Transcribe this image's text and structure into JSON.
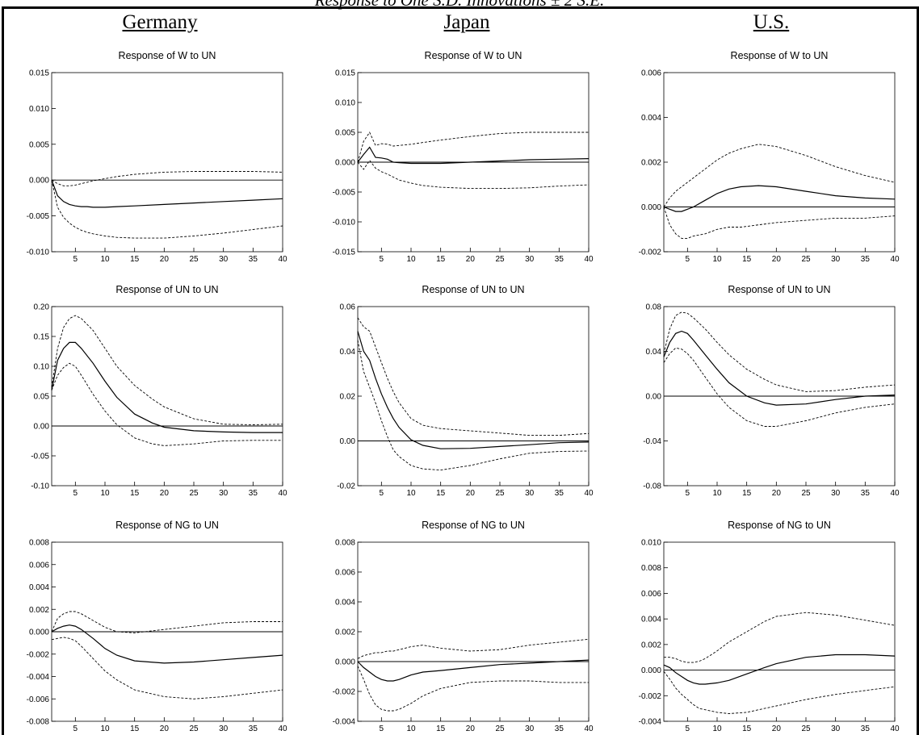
{
  "figure": {
    "title": "Response to One S.D. Innovations ± 2 S.E.",
    "columns": [
      "Germany",
      "Japan",
      "U.S."
    ]
  },
  "chart_data": [
    {
      "type": "line",
      "country": "Germany",
      "title": "Response of W to UN",
      "ylim": [
        -0.01,
        0.015
      ],
      "yticks": [
        "-0.010",
        "-0.005",
        "0.000",
        "0.005",
        "0.010",
        "0.015"
      ],
      "xlim": [
        1,
        40
      ],
      "xticks": [
        5,
        10,
        15,
        20,
        25,
        30,
        35,
        40
      ],
      "x": [
        1,
        2,
        3,
        4,
        5,
        6,
        7,
        8,
        10,
        12,
        15,
        20,
        25,
        30,
        35,
        40
      ],
      "series": [
        {
          "values": [
            0,
            -0.0022,
            -0.003,
            -0.0034,
            -0.0036,
            -0.0037,
            -0.0037,
            -0.0038,
            -0.0038,
            -0.0037,
            -0.0036,
            -0.0034,
            -0.0032,
            -0.003,
            -0.0028,
            -0.0026
          ],
          "style": "solid"
        },
        {
          "values": [
            0,
            -0.0005,
            -0.0008,
            -0.0008,
            -0.0007,
            -0.0005,
            -0.0003,
            -0.0001,
            0.0002,
            0.0005,
            0.0008,
            0.0011,
            0.0012,
            0.0012,
            0.0012,
            0.0011
          ],
          "style": "dashed"
        },
        {
          "values": [
            0,
            -0.0038,
            -0.0052,
            -0.006,
            -0.0066,
            -0.007,
            -0.0073,
            -0.0075,
            -0.0078,
            -0.008,
            -0.0081,
            -0.0081,
            -0.0078,
            -0.0074,
            -0.0069,
            -0.0064
          ],
          "style": "dashed"
        }
      ]
    },
    {
      "type": "line",
      "country": "Japan",
      "title": "Response of W to UN",
      "ylim": [
        -0.015,
        0.015
      ],
      "yticks": [
        "-0.015",
        "-0.010",
        "-0.005",
        "0.000",
        "0.005",
        "0.010",
        "0.015"
      ],
      "xlim": [
        1,
        40
      ],
      "xticks": [
        5,
        10,
        15,
        20,
        25,
        30,
        35,
        40
      ],
      "x": [
        1,
        2,
        3,
        4,
        5,
        6,
        7,
        8,
        10,
        12,
        15,
        20,
        25,
        30,
        35,
        40
      ],
      "series": [
        {
          "values": [
            0,
            0.0013,
            0.0025,
            0.0008,
            0.0007,
            0.0005,
            0.0,
            -0.0001,
            -0.0002,
            -0.0002,
            -0.0002,
            0.0,
            0.0002,
            0.0004,
            0.0005,
            0.0006
          ],
          "style": "solid"
        },
        {
          "values": [
            0,
            0.0035,
            0.005,
            0.0028,
            0.0031,
            0.003,
            0.0027,
            0.0028,
            0.003,
            0.0033,
            0.0037,
            0.0043,
            0.0048,
            0.005,
            0.005,
            0.005
          ],
          "style": "dashed"
        },
        {
          "values": [
            0,
            -0.0012,
            0.0003,
            -0.001,
            -0.0016,
            -0.002,
            -0.0025,
            -0.003,
            -0.0035,
            -0.0039,
            -0.0042,
            -0.0044,
            -0.0044,
            -0.0043,
            -0.004,
            -0.0038
          ],
          "style": "dashed"
        }
      ]
    },
    {
      "type": "line",
      "country": "U.S.",
      "title": "Response of W to UN",
      "ylim": [
        -0.002,
        0.006
      ],
      "yticks": [
        "-0.002",
        "0.000",
        "0.002",
        "0.004",
        "0.006"
      ],
      "xlim": [
        1,
        40
      ],
      "xticks": [
        5,
        10,
        15,
        20,
        25,
        30,
        35,
        40
      ],
      "x": [
        1,
        2,
        3,
        4,
        5,
        6,
        8,
        10,
        12,
        14,
        17,
        20,
        25,
        30,
        35,
        40
      ],
      "series": [
        {
          "values": [
            0,
            -0.0001,
            -0.0002,
            -0.0002,
            -0.0001,
            0.0,
            0.0003,
            0.0006,
            0.0008,
            0.0009,
            0.00095,
            0.0009,
            0.0007,
            0.0005,
            0.0004,
            0.00035
          ],
          "style": "solid"
        },
        {
          "values": [
            0,
            0.0004,
            0.0007,
            0.0009,
            0.0011,
            0.0013,
            0.0017,
            0.0021,
            0.0024,
            0.0026,
            0.0028,
            0.0027,
            0.0023,
            0.0018,
            0.0014,
            0.0011
          ],
          "style": "dashed"
        },
        {
          "values": [
            0,
            -0.0008,
            -0.0012,
            -0.0014,
            -0.0014,
            -0.0013,
            -0.0012,
            -0.001,
            -0.0009,
            -0.0009,
            -0.0008,
            -0.0007,
            -0.0006,
            -0.0005,
            -0.0005,
            -0.0004
          ],
          "style": "dashed"
        }
      ]
    },
    {
      "type": "line",
      "country": "Germany",
      "title": "Response of UN to UN",
      "ylim": [
        -0.1,
        0.2
      ],
      "yticks": [
        "-0.10",
        "-0.05",
        "0.00",
        "0.05",
        "0.10",
        "0.15",
        "0.20"
      ],
      "xlim": [
        1,
        40
      ],
      "xticks": [
        5,
        10,
        15,
        20,
        25,
        30,
        35,
        40
      ],
      "x": [
        1,
        2,
        3,
        4,
        5,
        6,
        8,
        10,
        12,
        15,
        18,
        20,
        25,
        30,
        35,
        40
      ],
      "series": [
        {
          "values": [
            0.06,
            0.11,
            0.13,
            0.14,
            0.14,
            0.13,
            0.105,
            0.075,
            0.048,
            0.02,
            0.005,
            -0.002,
            -0.008,
            -0.01,
            -0.011,
            -0.011
          ],
          "style": "solid"
        },
        {
          "values": [
            0.065,
            0.13,
            0.165,
            0.18,
            0.185,
            0.18,
            0.16,
            0.13,
            0.1,
            0.068,
            0.045,
            0.032,
            0.012,
            0.003,
            0.002,
            0.003
          ],
          "style": "dashed"
        },
        {
          "values": [
            0.06,
            0.085,
            0.098,
            0.105,
            0.1,
            0.085,
            0.053,
            0.025,
            0.002,
            -0.02,
            -0.03,
            -0.033,
            -0.03,
            -0.025,
            -0.024,
            -0.024
          ],
          "style": "dashed"
        }
      ]
    },
    {
      "type": "line",
      "country": "Japan",
      "title": "Response of UN to UN",
      "ylim": [
        -0.02,
        0.06
      ],
      "yticks": [
        "-0.02",
        "0.00",
        "0.02",
        "0.04",
        "0.06"
      ],
      "xlim": [
        1,
        40
      ],
      "xticks": [
        5,
        10,
        15,
        20,
        25,
        30,
        35,
        40
      ],
      "x": [
        1,
        2,
        3,
        4,
        5,
        6,
        7,
        8,
        10,
        12,
        15,
        20,
        25,
        30,
        35,
        40
      ],
      "series": [
        {
          "values": [
            0.049,
            0.04,
            0.036,
            0.028,
            0.021,
            0.015,
            0.01,
            0.006,
            0.0005,
            -0.002,
            -0.0035,
            -0.0033,
            -0.0025,
            -0.0017,
            -0.0008,
            -0.0005
          ],
          "style": "solid"
        },
        {
          "values": [
            0.055,
            0.051,
            0.049,
            0.042,
            0.035,
            0.028,
            0.022,
            0.017,
            0.01,
            0.007,
            0.0055,
            0.0045,
            0.0035,
            0.0025,
            0.0025,
            0.0033
          ],
          "style": "dashed"
        },
        {
          "values": [
            0.045,
            0.031,
            0.024,
            0.017,
            0.009,
            0.002,
            -0.004,
            -0.007,
            -0.011,
            -0.0125,
            -0.013,
            -0.011,
            -0.008,
            -0.0055,
            -0.0047,
            -0.0045
          ],
          "style": "dashed"
        }
      ]
    },
    {
      "type": "line",
      "country": "U.S.",
      "title": "Response of UN to UN",
      "ylim": [
        -0.08,
        0.08
      ],
      "yticks": [
        "-0.08",
        "-0.04",
        "0.00",
        "0.04",
        "0.08"
      ],
      "xlim": [
        1,
        40
      ],
      "xticks": [
        5,
        10,
        15,
        20,
        25,
        30,
        35,
        40
      ],
      "x": [
        1,
        2,
        3,
        4,
        5,
        6,
        8,
        10,
        12,
        15,
        18,
        20,
        25,
        30,
        35,
        40
      ],
      "series": [
        {
          "values": [
            0.035,
            0.048,
            0.056,
            0.058,
            0.056,
            0.05,
            0.037,
            0.024,
            0.012,
            0.0,
            -0.006,
            -0.008,
            -0.007,
            -0.003,
            0.0,
            0.001
          ],
          "style": "solid"
        },
        {
          "values": [
            0.038,
            0.06,
            0.072,
            0.075,
            0.074,
            0.07,
            0.06,
            0.048,
            0.037,
            0.024,
            0.015,
            0.01,
            0.004,
            0.005,
            0.008,
            0.01
          ],
          "style": "dashed"
        },
        {
          "values": [
            0.03,
            0.038,
            0.043,
            0.042,
            0.038,
            0.032,
            0.017,
            0.002,
            -0.01,
            -0.022,
            -0.027,
            -0.027,
            -0.022,
            -0.015,
            -0.01,
            -0.007
          ],
          "style": "dashed"
        }
      ]
    },
    {
      "type": "line",
      "country": "Germany",
      "title": "Response of NG to UN",
      "ylim": [
        -0.008,
        0.008
      ],
      "yticks": [
        "-0.008",
        "-0.006",
        "-0.004",
        "-0.002",
        "0.000",
        "0.002",
        "0.004",
        "0.006",
        "0.008"
      ],
      "xlim": [
        1,
        40
      ],
      "xticks": [
        5,
        10,
        15,
        20,
        25,
        30,
        35,
        40
      ],
      "x": [
        1,
        2,
        3,
        4,
        5,
        6,
        8,
        10,
        12,
        15,
        20,
        25,
        30,
        35,
        40
      ],
      "series": [
        {
          "values": [
            0,
            0.0003,
            0.0005,
            0.0006,
            0.0005,
            0.0002,
            -0.0006,
            -0.0015,
            -0.0021,
            -0.0026,
            -0.0028,
            -0.0027,
            -0.0025,
            -0.0023,
            -0.0021
          ],
          "style": "solid"
        },
        {
          "values": [
            0,
            0.0012,
            0.0016,
            0.0018,
            0.0018,
            0.0016,
            0.001,
            0.0004,
            0.0,
            -0.0001,
            0.0002,
            0.0005,
            0.0008,
            0.0009,
            0.0009
          ],
          "style": "dashed"
        },
        {
          "values": [
            -0.0007,
            -0.0006,
            -0.0005,
            -0.0006,
            -0.0008,
            -0.0013,
            -0.0024,
            -0.0035,
            -0.0043,
            -0.0052,
            -0.0058,
            -0.006,
            -0.0058,
            -0.0055,
            -0.0052
          ],
          "style": "dashed"
        }
      ]
    },
    {
      "type": "line",
      "country": "Japan",
      "title": "Response of NG to UN",
      "ylim": [
        -0.004,
        0.008
      ],
      "yticks": [
        "-0.004",
        "-0.002",
        "0.000",
        "0.002",
        "0.004",
        "0.006",
        "0.008"
      ],
      "xlim": [
        1,
        40
      ],
      "xticks": [
        5,
        10,
        15,
        20,
        25,
        30,
        35,
        40
      ],
      "x": [
        1,
        2,
        3,
        4,
        5,
        6,
        7,
        8,
        10,
        12,
        15,
        20,
        25,
        30,
        35,
        40
      ],
      "series": [
        {
          "values": [
            0,
            -0.0004,
            -0.0007,
            -0.001,
            -0.0012,
            -0.0013,
            -0.0013,
            -0.0012,
            -0.0009,
            -0.0007,
            -0.0006,
            -0.0004,
            -0.0002,
            -0.0001,
            0.0,
            0.0001
          ],
          "style": "solid"
        },
        {
          "values": [
            0.0002,
            0.0004,
            0.0005,
            0.0006,
            0.0006,
            0.0007,
            0.0007,
            0.0008,
            0.001,
            0.0011,
            0.0009,
            0.0007,
            0.0008,
            0.0011,
            0.0013,
            0.0015
          ],
          "style": "dashed"
        },
        {
          "values": [
            -0.0003,
            -0.0012,
            -0.0022,
            -0.0029,
            -0.0032,
            -0.0033,
            -0.0033,
            -0.0032,
            -0.0028,
            -0.0023,
            -0.0018,
            -0.0014,
            -0.0013,
            -0.0013,
            -0.0014,
            -0.0014
          ],
          "style": "dashed"
        }
      ]
    },
    {
      "type": "line",
      "country": "U.S.",
      "title": "Response of NG to UN",
      "ylim": [
        -0.004,
        0.01
      ],
      "yticks": [
        "-0.004",
        "-0.002",
        "0.000",
        "0.002",
        "0.004",
        "0.006",
        "0.008",
        "0.010"
      ],
      "xlim": [
        1,
        40
      ],
      "xticks": [
        5,
        10,
        15,
        20,
        25,
        30,
        35,
        40
      ],
      "x": [
        1,
        2,
        3,
        4,
        5,
        6,
        7,
        8,
        10,
        12,
        15,
        18,
        20,
        25,
        30,
        35,
        40
      ],
      "series": [
        {
          "values": [
            0.0004,
            0.0002,
            -0.0002,
            -0.0005,
            -0.0008,
            -0.001,
            -0.0011,
            -0.0011,
            -0.001,
            -0.0008,
            -0.0003,
            0.0002,
            0.0005,
            0.001,
            0.0012,
            0.0012,
            0.0011
          ],
          "style": "solid"
        },
        {
          "values": [
            0.001,
            0.001,
            0.0009,
            0.0007,
            0.0006,
            0.0006,
            0.0007,
            0.0009,
            0.0015,
            0.0022,
            0.003,
            0.0038,
            0.0042,
            0.0045,
            0.0043,
            0.0039,
            0.0035
          ],
          "style": "dashed"
        },
        {
          "values": [
            -0.0001,
            -0.0007,
            -0.0014,
            -0.0019,
            -0.0023,
            -0.0027,
            -0.003,
            -0.0031,
            -0.0033,
            -0.0034,
            -0.0033,
            -0.003,
            -0.0028,
            -0.0023,
            -0.0019,
            -0.0016,
            -0.0013
          ],
          "style": "dashed"
        }
      ]
    }
  ]
}
